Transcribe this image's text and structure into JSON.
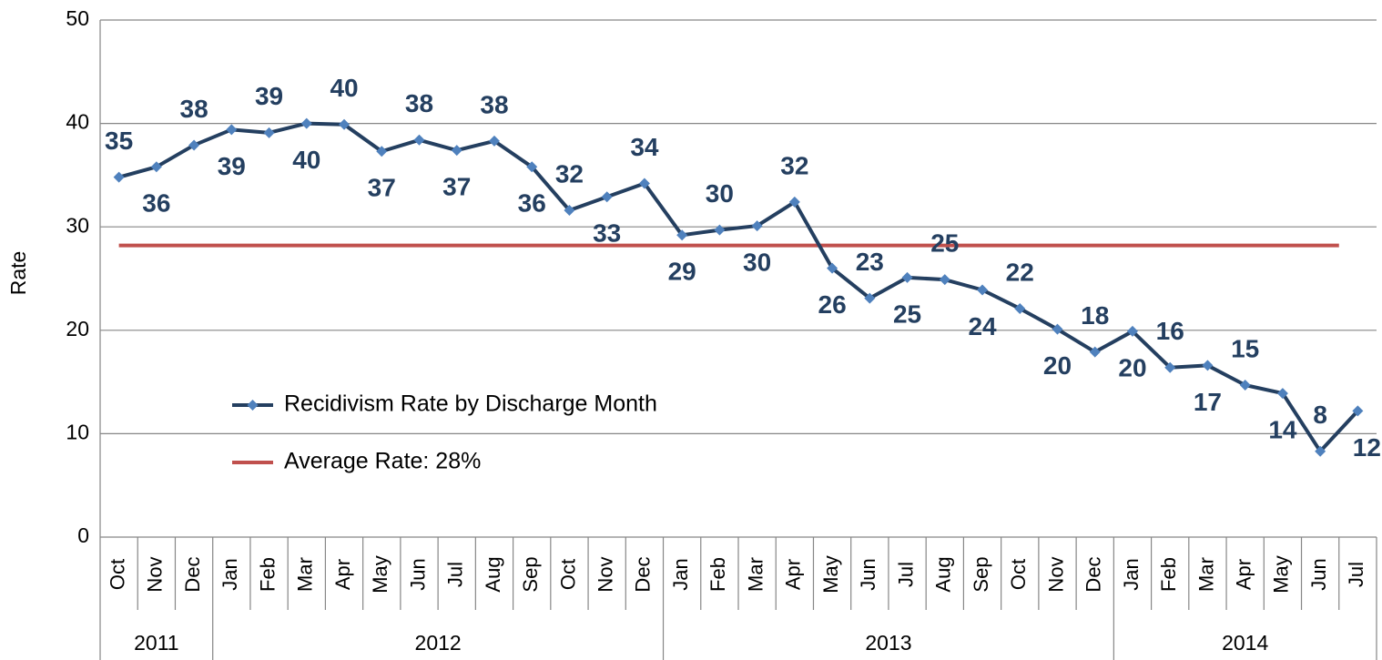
{
  "chart_data": {
    "type": "line",
    "y_label": "Rate",
    "categories": [
      "Oct",
      "Nov",
      "Dec",
      "Jan",
      "Feb",
      "Mar",
      "Apr",
      "May",
      "Jun",
      "Jul",
      "Aug",
      "Sep",
      "Oct",
      "Nov",
      "Dec",
      "Jan",
      "Feb",
      "Mar",
      "Apr",
      "May",
      "Jun",
      "Jul",
      "Aug",
      "Sep",
      "Oct",
      "Nov",
      "Dec",
      "Jan",
      "Feb",
      "Mar",
      "Apr",
      "May",
      "Jun",
      "Jul"
    ],
    "groups": [
      {
        "label": "2011",
        "span": 3
      },
      {
        "label": "2012",
        "span": 12
      },
      {
        "label": "2013",
        "span": 12
      },
      {
        "label": "2014",
        "span": 7
      }
    ],
    "series": [
      {
        "name": "Recidivism Rate by Discharge Month",
        "color": "#243f60",
        "marker_color": "#4f81bd",
        "values": [
          34.8,
          35.8,
          37.9,
          39.4,
          39.1,
          40.0,
          39.9,
          37.3,
          38.4,
          37.4,
          38.3,
          35.8,
          31.6,
          32.9,
          34.2,
          29.2,
          29.7,
          30.1,
          32.4,
          26.0,
          23.1,
          25.1,
          24.9,
          23.9,
          22.1,
          20.1,
          17.9,
          19.9,
          16.4,
          16.6,
          14.7,
          13.9,
          8.3,
          12.2
        ],
        "value_labels": [
          "35",
          "36",
          "38",
          "39",
          "39",
          "40",
          "40",
          "37",
          "38",
          "37",
          "38",
          "36",
          "32",
          "33",
          "34",
          "29",
          "30",
          "30",
          "32",
          "26",
          "23",
          "25",
          "25",
          "24",
          "22",
          "20",
          "18",
          "20",
          "16",
          "17",
          "15",
          "14",
          "8",
          "12"
        ]
      }
    ],
    "reference_line": {
      "name": "Average Rate: 28%",
      "value": 28.2,
      "color": "#c0504d"
    },
    "ylim": [
      0,
      50
    ],
    "yticks": [
      0,
      10,
      20,
      30,
      40,
      50
    ],
    "grid": true
  }
}
